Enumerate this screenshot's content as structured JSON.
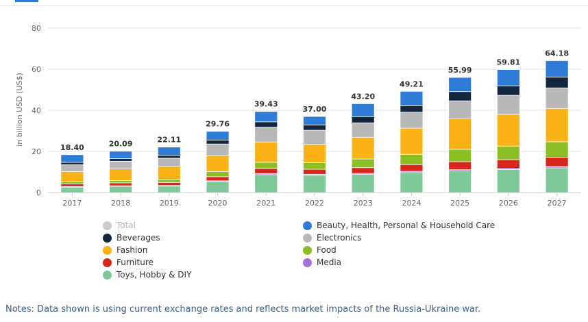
{
  "chart_data": {
    "type": "bar",
    "stacked": true,
    "ylabel": "in billion USD (US$)",
    "ylim": [
      0,
      80
    ],
    "yticks": [
      0,
      20,
      40,
      60,
      80
    ],
    "grid": true,
    "legend_placement": "bottom",
    "categories": [
      "2017",
      "2018",
      "2019",
      "2020",
      "2021",
      "2022",
      "2023",
      "2024",
      "2025",
      "2026",
      "2027"
    ],
    "totals": [
      "18.40",
      "20.09",
      "22.11",
      "29.76",
      "39.43",
      "37.00",
      "43.20",
      "49.21",
      "55.99",
      "59.81",
      "64.18"
    ],
    "series": [
      {
        "name": "Toys, Hobby & DIY",
        "color": "#7ec89a",
        "values": [
          2.6,
          3.0,
          3.1,
          5.3,
          8.7,
          8.4,
          8.8,
          9.7,
          10.5,
          11.2,
          12.0
        ]
      },
      {
        "name": "Media",
        "color": "#a56ed8",
        "values": [
          0.3,
          0.3,
          0.3,
          0.4,
          0.5,
          0.5,
          0.5,
          0.6,
          0.6,
          0.6,
          0.7
        ]
      },
      {
        "name": "Furniture",
        "color": "#d9261c",
        "values": [
          1.3,
          1.4,
          1.5,
          2.0,
          2.5,
          2.4,
          2.8,
          3.3,
          3.9,
          4.2,
          4.5
        ]
      },
      {
        "name": "Food",
        "color": "#8cbf26",
        "values": [
          1.0,
          1.1,
          1.5,
          2.5,
          3.0,
          3.2,
          4.2,
          5.0,
          6.0,
          6.6,
          7.5
        ]
      },
      {
        "name": "Fashion",
        "color": "#fbb216",
        "values": [
          5.0,
          5.7,
          6.2,
          7.7,
          9.9,
          9.0,
          10.6,
          12.7,
          14.8,
          15.4,
          16.2
        ]
      },
      {
        "name": "Electronics",
        "color": "#b8b8b8",
        "values": [
          3.3,
          3.7,
          4.1,
          5.7,
          7.2,
          6.8,
          7.0,
          7.8,
          8.8,
          9.3,
          10.0
        ]
      },
      {
        "name": "Beverages",
        "color": "#14263d",
        "values": [
          1.2,
          1.3,
          1.4,
          1.9,
          2.6,
          2.6,
          2.9,
          3.1,
          4.5,
          4.6,
          5.3
        ]
      },
      {
        "name": "Beauty, Health, Personal & Household Care",
        "color": "#2e7cd8",
        "values": [
          3.7,
          3.59,
          4.01,
          4.26,
          5.03,
          4.1,
          6.4,
          7.01,
          6.89,
          7.91,
          7.98
        ]
      }
    ]
  },
  "legend": {
    "items": [
      {
        "label": "Total",
        "color": "#cccccc",
        "muted": true
      },
      {
        "label": "Beauty, Health, Personal & Household Care",
        "color": "#2e7cd8"
      },
      {
        "label": "Beverages",
        "color": "#14263d"
      },
      {
        "label": "Electronics",
        "color": "#b8b8b8"
      },
      {
        "label": "Fashion",
        "color": "#fbb216"
      },
      {
        "label": "Food",
        "color": "#8cbf26"
      },
      {
        "label": "Furniture",
        "color": "#d9261c"
      },
      {
        "label": "Media",
        "color": "#a56ed8"
      },
      {
        "label": "Toys, Hobby & DIY",
        "color": "#7ec89a"
      }
    ]
  },
  "notes": "Notes: Data shown is using current exchange rates and reflects market impacts of the Russia-Ukraine war."
}
